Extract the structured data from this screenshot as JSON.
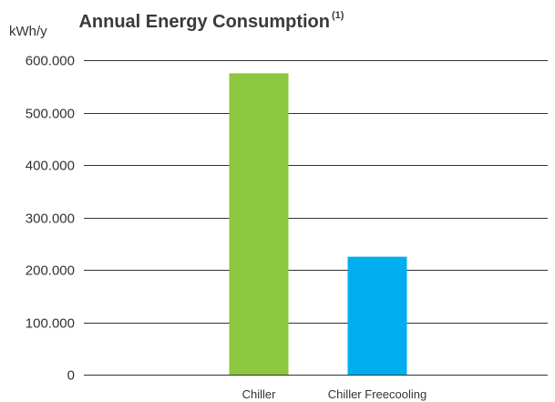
{
  "chart_data": {
    "type": "bar",
    "title": "Annual Energy Consumption",
    "title_superscript": "(1)",
    "ylabel": "kWh/y",
    "xlabel": "",
    "categories": [
      "Chiller",
      "Chiller Freecooling"
    ],
    "values": [
      575000,
      225000
    ],
    "bar_colors": [
      "#8dc63f",
      "#00aeef"
    ],
    "ylim": [
      0,
      600000
    ],
    "yticks": [
      0,
      100000,
      200000,
      300000,
      400000,
      500000,
      600000
    ],
    "ytick_labels": [
      "0",
      "100.000",
      "200.000",
      "300.000",
      "400.000",
      "500.000",
      "600.000"
    ],
    "grid": true,
    "legend": "none"
  }
}
